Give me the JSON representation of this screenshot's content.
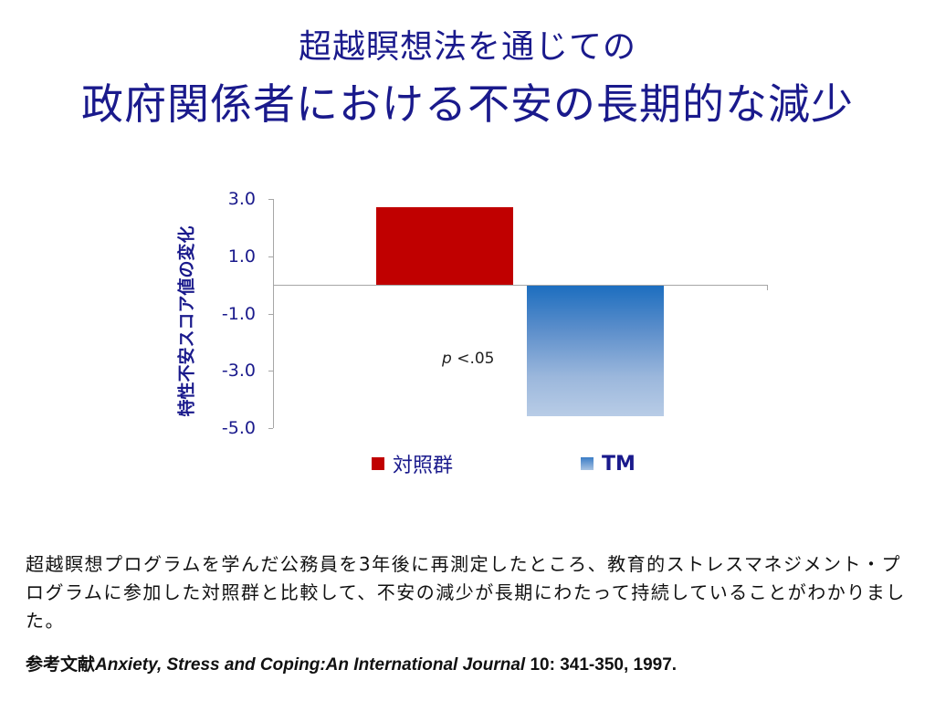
{
  "slide": {
    "title_line1": "超越瞑想法を通じての",
    "title_line2": "政府関係者における不安の長期的な減少",
    "body": "超越瞑想プログラムを学んだ公務員を3年後に再測定したところ、教育的ストレスマネジメント・プログラムに参加した対照群と比較して、不安の減少が長期にわたって持続していることがわかりました。",
    "citation": {
      "prefix": "参考文献",
      "journal": "Anxiety, Stress and Coping:An International Journal",
      "details": " 10: 341-350, 1997."
    }
  },
  "chart_data": {
    "type": "bar",
    "title": "",
    "xlabel": "",
    "ylabel": "特性不安スコア値の変化",
    "ylim": [
      -5.0,
      3.0
    ],
    "yticks": [
      "3.0",
      "1.0",
      "-1.0",
      "-3.0",
      "-5.0"
    ],
    "categories": [
      "対照群",
      "TM"
    ],
    "values": [
      2.7,
      -4.6
    ],
    "colors": [
      "#c00000",
      "#1b6dbf"
    ],
    "legend": [
      {
        "label": "対照群",
        "color": "#c00000"
      },
      {
        "label": "TM",
        "color": "#4a86c8"
      }
    ],
    "legend_position": "bottom",
    "grid": false,
    "annotation": {
      "p_symbol": "p",
      "text": " <.05"
    }
  }
}
